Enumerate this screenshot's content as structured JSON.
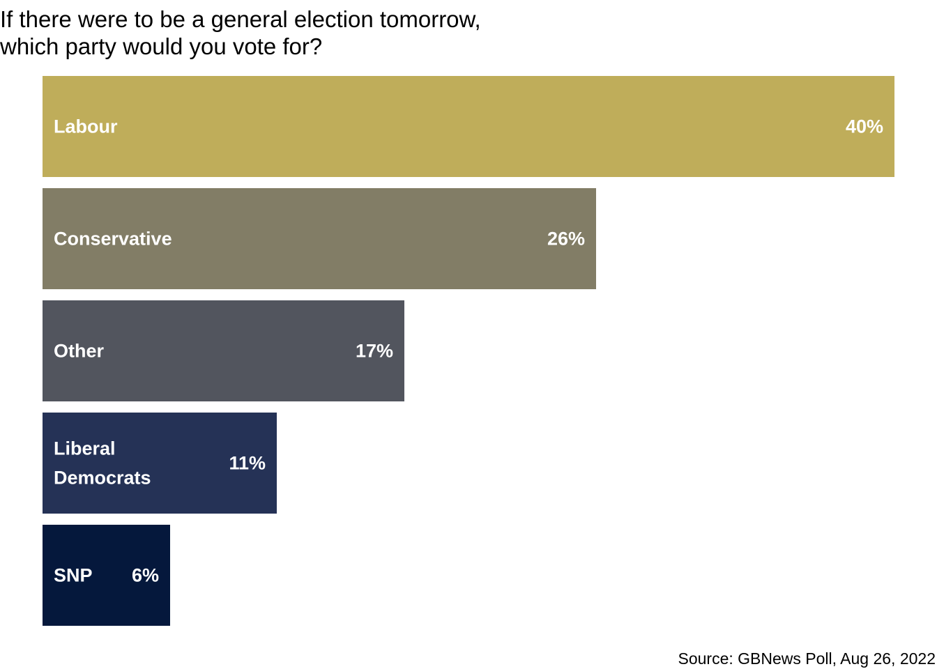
{
  "chart_data": {
    "type": "bar",
    "orientation": "horizontal",
    "title": "If there were to be a general election tomorrow,\nwhich party would you vote for?",
    "categories": [
      "Labour",
      "Conservative",
      "Other",
      "Liberal Democrats",
      "SNP"
    ],
    "values": [
      40,
      26,
      17,
      11,
      6
    ],
    "value_labels": [
      "40%",
      "26%",
      "17%",
      "11%",
      "6%"
    ],
    "colors": [
      "#bfad5a",
      "#827d66",
      "#52555e",
      "#253256",
      "#05183c"
    ],
    "unit": "%",
    "xlabel": "",
    "ylabel": "",
    "xlim": [
      0,
      40
    ],
    "grid": false,
    "legend": "none",
    "source": "Source: GBNews Poll, Aug 26, 2022"
  }
}
